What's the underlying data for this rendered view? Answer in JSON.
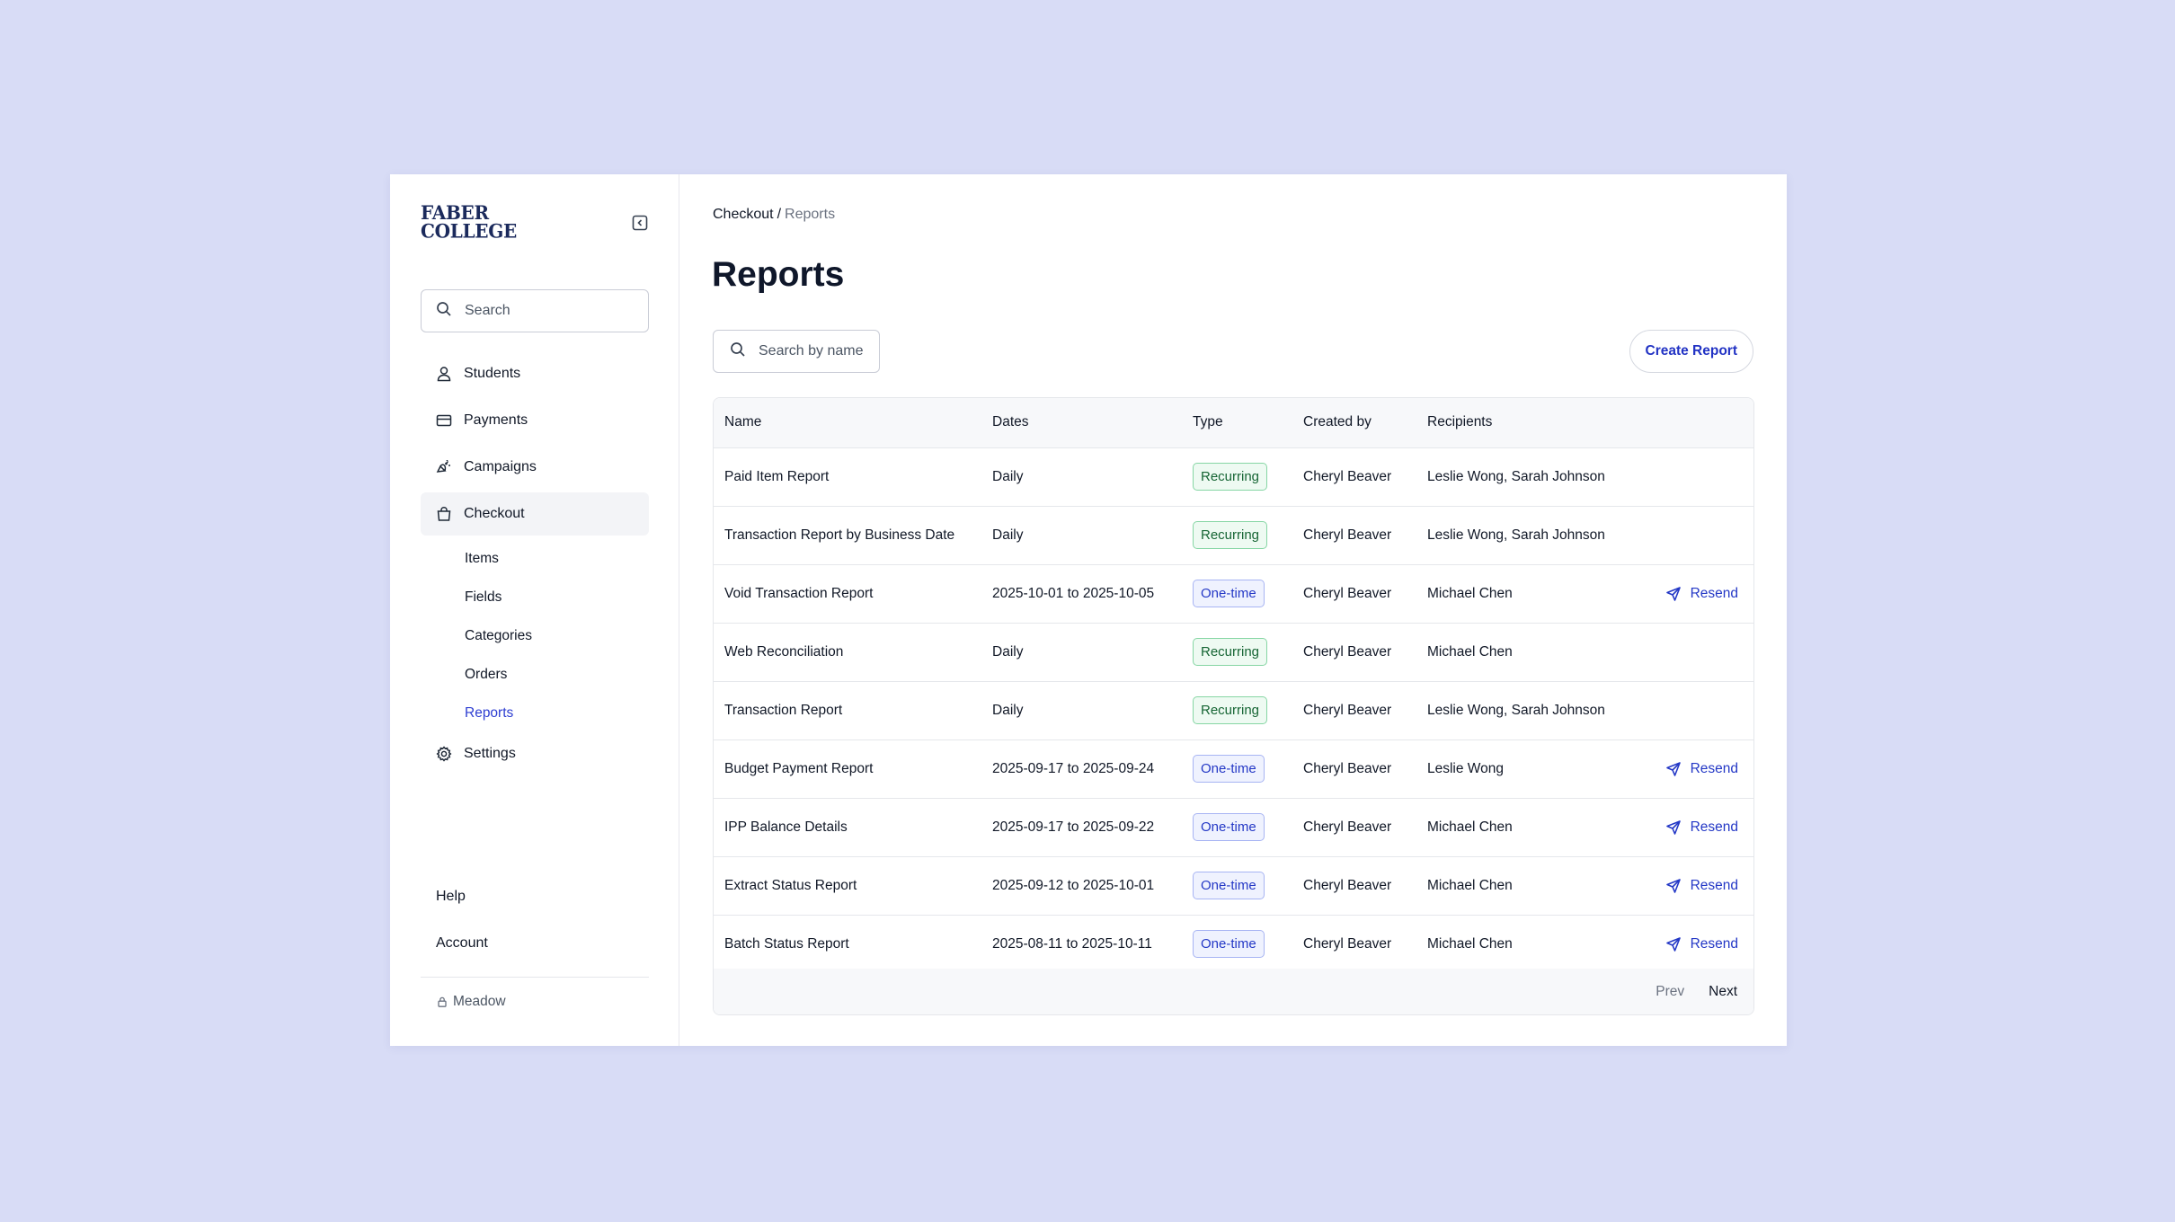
{
  "brand": {
    "logo_line1": "FABER",
    "logo_line2": "COLLEGE"
  },
  "sidebar": {
    "search_placeholder": "Search",
    "items": [
      {
        "label": "Students",
        "icon": "user-icon"
      },
      {
        "label": "Payments",
        "icon": "credit-card-icon"
      },
      {
        "label": "Campaigns",
        "icon": "megaphone-icon"
      },
      {
        "label": "Checkout",
        "icon": "shopping-bag-icon",
        "active": true
      },
      {
        "label": "Settings",
        "icon": "gear-icon"
      }
    ],
    "checkout_subitems": [
      "Items",
      "Fields",
      "Categories",
      "Orders",
      "Reports"
    ],
    "active_subitem": "Reports",
    "help_label": "Help",
    "account_label": "Account",
    "org_label": "Meadow"
  },
  "breadcrumb": {
    "parent": "Checkout",
    "separator": "/",
    "current": "Reports"
  },
  "page": {
    "title": "Reports",
    "search_placeholder": "Search by name",
    "create_label": "Create Report"
  },
  "table": {
    "headers": [
      "Name",
      "Dates",
      "Type",
      "Created by",
      "Recipients"
    ],
    "rows": [
      {
        "name": "Paid Item Report",
        "dates": "Daily",
        "type": "Recurring",
        "created_by": "Cheryl Beaver",
        "recipients": "Leslie Wong, Sarah Johnson",
        "action": ""
      },
      {
        "name": "Transaction Report by Business Date",
        "dates": "Daily",
        "type": "Recurring",
        "created_by": "Cheryl Beaver",
        "recipients": "Leslie Wong, Sarah Johnson",
        "action": ""
      },
      {
        "name": "Void Transaction Report",
        "dates": "2025-10-01 to 2025-10-05",
        "type": "One-time",
        "created_by": "Cheryl Beaver",
        "recipients": "Michael Chen",
        "action": "Resend"
      },
      {
        "name": "Web Reconciliation",
        "dates": "Daily",
        "type": "Recurring",
        "created_by": "Cheryl Beaver",
        "recipients": "Michael Chen",
        "action": ""
      },
      {
        "name": "Transaction Report",
        "dates": "Daily",
        "type": "Recurring",
        "created_by": "Cheryl Beaver",
        "recipients": "Leslie Wong, Sarah Johnson",
        "action": ""
      },
      {
        "name": "Budget Payment Report",
        "dates": "2025-09-17 to 2025-09-24",
        "type": "One-time",
        "created_by": "Cheryl Beaver",
        "recipients": "Leslie Wong",
        "action": "Resend"
      },
      {
        "name": "IPP Balance Details",
        "dates": "2025-09-17 to 2025-09-22",
        "type": "One-time",
        "created_by": "Cheryl Beaver",
        "recipients": "Michael Chen",
        "action": "Resend"
      },
      {
        "name": "Extract Status Report",
        "dates": "2025-09-12 to 2025-10-01",
        "type": "One-time",
        "created_by": "Cheryl Beaver",
        "recipients": "Michael Chen",
        "action": "Resend"
      },
      {
        "name": "Batch Status Report",
        "dates": "2025-08-11 to 2025-10-11",
        "type": "One-time",
        "created_by": "Cheryl Beaver",
        "recipients": "Michael Chen",
        "action": "Resend"
      }
    ]
  },
  "pager": {
    "prev_label": "Prev",
    "next_label": "Next"
  },
  "colors": {
    "accent": "#2438c6",
    "background": "#d8dcf6",
    "recurring": "#166534",
    "one_time": "#2438c6"
  }
}
